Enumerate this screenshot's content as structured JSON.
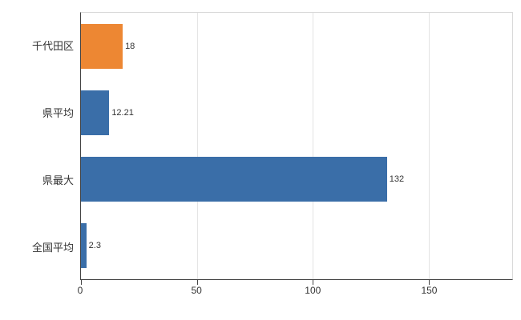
{
  "chart_data": {
    "type": "bar",
    "orientation": "horizontal",
    "title": "",
    "xlabel": "",
    "ylabel": "",
    "categories": [
      "千代田区",
      "県平均",
      "県最大",
      "全国平均"
    ],
    "values": [
      18,
      12.21,
      132,
      2.3
    ],
    "value_labels": [
      "18",
      "12.21",
      "132",
      "2.3"
    ],
    "bar_colors": [
      "#ED8733",
      "#3A6EA8",
      "#3A6EA8",
      "#3A6EA8"
    ],
    "xlim": [
      0,
      186
    ],
    "x_ticks": [
      0,
      50,
      100,
      150
    ],
    "grid": true,
    "legend": false,
    "style": {
      "grid_color": "#e4e4e4",
      "plot_border_color": "#d9d9d9",
      "axis_color": "#444444",
      "text_color": "#333333",
      "background": "#ffffff"
    }
  }
}
